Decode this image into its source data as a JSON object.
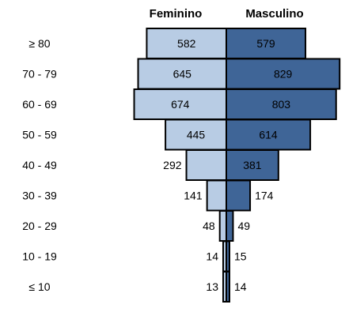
{
  "chart_data": {
    "type": "bar",
    "orientation": "horizontal-population-pyramid",
    "categories": [
      "≥ 80",
      "70 - 79",
      "60 - 69",
      "50 - 59",
      "40 - 49",
      "30 - 39",
      "20 - 29",
      "10 - 19",
      "≤ 10"
    ],
    "series": [
      {
        "name": "Feminino",
        "values": [
          582,
          645,
          674,
          445,
          292,
          141,
          48,
          14,
          13
        ],
        "color": "#b8cce4"
      },
      {
        "name": "Masculino",
        "values": [
          579,
          829,
          803,
          614,
          381,
          174,
          49,
          15,
          14
        ],
        "color": "#3f6597"
      }
    ],
    "title": "",
    "xlabel": "",
    "ylabel": "",
    "legend": "top",
    "grid": false
  }
}
